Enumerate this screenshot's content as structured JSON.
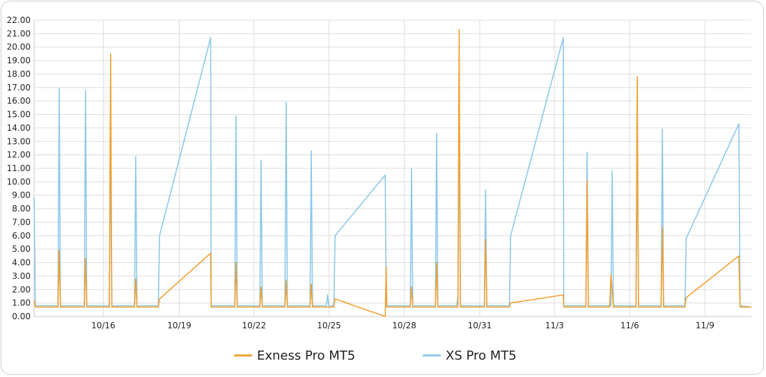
{
  "chart_data": {
    "type": "line",
    "title": "",
    "xlabel": "",
    "ylabel": "",
    "ylim": [
      0,
      22
    ],
    "ytick_step": 1,
    "yticks": [
      "0.00",
      "1.00",
      "2.00",
      "3.00",
      "4.00",
      "5.00",
      "6.00",
      "7.00",
      "8.00",
      "9.00",
      "10.00",
      "11.00",
      "12.00",
      "13.00",
      "14.00",
      "15.00",
      "16.00",
      "17.00",
      "18.00",
      "19.00",
      "20.00",
      "21.00",
      "22.00"
    ],
    "xlim": [
      12.95,
      41.55
    ],
    "xticks": [
      {
        "label": "10/16",
        "x": 15.71
      },
      {
        "label": "10/19",
        "x": 18.74
      },
      {
        "label": "10/22",
        "x": 21.72
      },
      {
        "label": "10/25",
        "x": 24.71
      },
      {
        "label": "10/28",
        "x": 27.71
      },
      {
        "label": "10/31",
        "x": 30.72
      },
      {
        "label": "11/3",
        "x": 33.7
      },
      {
        "label": "11/6",
        "x": 36.7
      },
      {
        "label": "11/9",
        "x": 39.7
      }
    ],
    "grid": true,
    "legend_position": "bottom",
    "series": [
      {
        "name": "Exness Pro MT5",
        "color": "#F0A030",
        "points": [
          [
            12.95,
            1.2
          ],
          [
            13.0,
            0.7
          ],
          [
            13.9,
            0.7
          ],
          [
            13.95,
            4.9
          ],
          [
            14.0,
            0.7
          ],
          [
            14.95,
            0.7
          ],
          [
            15.0,
            4.3
          ],
          [
            15.05,
            0.7
          ],
          [
            15.95,
            0.7
          ],
          [
            16.0,
            19.5
          ],
          [
            16.05,
            0.7
          ],
          [
            16.95,
            0.7
          ],
          [
            17.0,
            2.8
          ],
          [
            17.05,
            0.7
          ],
          [
            17.9,
            0.7
          ],
          [
            17.95,
            1.3
          ],
          [
            19.99,
            4.7
          ],
          [
            20.01,
            0.7
          ],
          [
            20.95,
            0.7
          ],
          [
            21.0,
            4.0
          ],
          [
            21.05,
            0.7
          ],
          [
            21.95,
            0.7
          ],
          [
            22.0,
            2.2
          ],
          [
            22.05,
            0.7
          ],
          [
            22.95,
            0.7
          ],
          [
            23.0,
            2.7
          ],
          [
            23.05,
            0.7
          ],
          [
            23.95,
            0.7
          ],
          [
            24.0,
            2.4
          ],
          [
            24.05,
            0.7
          ],
          [
            24.9,
            0.7
          ],
          [
            24.95,
            1.3
          ],
          [
            26.95,
            0.0
          ],
          [
            26.99,
            3.7
          ],
          [
            27.01,
            0.7
          ],
          [
            27.95,
            0.7
          ],
          [
            28.0,
            2.2
          ],
          [
            28.05,
            0.7
          ],
          [
            28.95,
            0.7
          ],
          [
            29.0,
            4.0
          ],
          [
            29.05,
            0.7
          ],
          [
            29.85,
            0.7
          ],
          [
            29.9,
            21.3
          ],
          [
            29.95,
            0.7
          ],
          [
            30.9,
            0.7
          ],
          [
            30.95,
            5.7
          ],
          [
            31.0,
            0.7
          ],
          [
            31.9,
            0.7
          ],
          [
            31.95,
            1.0
          ],
          [
            34.05,
            1.6
          ],
          [
            34.07,
            0.7
          ],
          [
            34.95,
            0.7
          ],
          [
            35.0,
            10.1
          ],
          [
            35.05,
            0.7
          ],
          [
            35.9,
            0.7
          ],
          [
            35.95,
            3.1
          ],
          [
            36.0,
            2.0
          ],
          [
            36.05,
            0.7
          ],
          [
            36.95,
            0.7
          ],
          [
            37.0,
            17.8
          ],
          [
            37.05,
            0.7
          ],
          [
            37.95,
            0.7
          ],
          [
            38.0,
            6.6
          ],
          [
            38.05,
            0.7
          ],
          [
            38.9,
            0.7
          ],
          [
            38.95,
            1.4
          ],
          [
            41.05,
            4.5
          ],
          [
            41.1,
            0.7
          ],
          [
            41.55,
            0.7
          ]
        ]
      },
      {
        "name": "XS Pro MT5",
        "color": "#8DC8E8",
        "points": [
          [
            12.95,
            8.8
          ],
          [
            13.0,
            0.8
          ],
          [
            13.9,
            0.8
          ],
          [
            13.95,
            16.9
          ],
          [
            14.0,
            0.8
          ],
          [
            14.95,
            0.8
          ],
          [
            15.0,
            16.8
          ],
          [
            15.05,
            0.8
          ],
          [
            15.95,
            0.8
          ],
          [
            16.0,
            13.1
          ],
          [
            16.05,
            0.8
          ],
          [
            16.95,
            0.8
          ],
          [
            17.0,
            11.9
          ],
          [
            17.05,
            0.8
          ],
          [
            17.9,
            0.8
          ],
          [
            17.95,
            6.0
          ],
          [
            19.99,
            20.7
          ],
          [
            20.01,
            0.8
          ],
          [
            20.95,
            0.8
          ],
          [
            21.0,
            14.9
          ],
          [
            21.05,
            0.8
          ],
          [
            21.95,
            0.8
          ],
          [
            22.0,
            11.6
          ],
          [
            22.05,
            0.8
          ],
          [
            22.95,
            0.8
          ],
          [
            23.0,
            15.9
          ],
          [
            23.05,
            0.8
          ],
          [
            23.95,
            0.8
          ],
          [
            24.0,
            12.3
          ],
          [
            24.05,
            0.8
          ],
          [
            24.6,
            0.8
          ],
          [
            24.65,
            1.6
          ],
          [
            24.7,
            0.8
          ],
          [
            24.9,
            0.8
          ],
          [
            24.95,
            6.0
          ],
          [
            26.95,
            10.5
          ],
          [
            26.99,
            0.8
          ],
          [
            27.95,
            0.8
          ],
          [
            28.0,
            11.0
          ],
          [
            28.05,
            0.8
          ],
          [
            28.95,
            0.8
          ],
          [
            29.0,
            13.6
          ],
          [
            29.05,
            0.8
          ],
          [
            29.8,
            0.8
          ],
          [
            29.85,
            1.5
          ],
          [
            29.9,
            13.6
          ],
          [
            29.95,
            0.8
          ],
          [
            30.9,
            0.8
          ],
          [
            30.95,
            9.4
          ],
          [
            31.0,
            0.8
          ],
          [
            31.9,
            0.8
          ],
          [
            31.95,
            6.0
          ],
          [
            34.05,
            20.7
          ],
          [
            34.07,
            0.8
          ],
          [
            34.95,
            0.8
          ],
          [
            35.0,
            12.2
          ],
          [
            35.05,
            0.8
          ],
          [
            35.95,
            0.8
          ],
          [
            36.0,
            10.8
          ],
          [
            36.05,
            0.8
          ],
          [
            36.95,
            0.8
          ],
          [
            37.0,
            13.0
          ],
          [
            37.05,
            0.8
          ],
          [
            37.95,
            0.8
          ],
          [
            38.0,
            13.9
          ],
          [
            38.05,
            0.8
          ],
          [
            38.9,
            0.8
          ],
          [
            38.95,
            5.8
          ],
          [
            41.05,
            14.3
          ],
          [
            41.1,
            0.8
          ],
          [
            41.55,
            0.7
          ]
        ]
      }
    ]
  }
}
